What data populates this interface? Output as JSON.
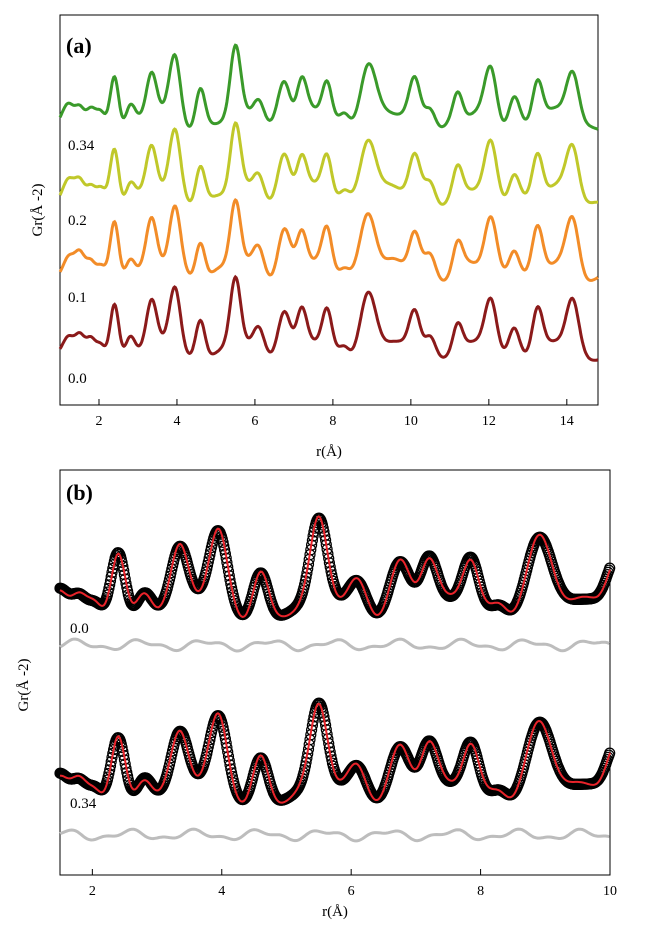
{
  "chart_data": [
    {
      "type": "line",
      "panel": "(a)",
      "xlabel": "r(Å)",
      "ylabel": "Gr(Å -2)",
      "xlim": [
        1,
        14.8
      ],
      "xticks": [
        2,
        4,
        6,
        8,
        10,
        12,
        14
      ],
      "yticks_shown": false,
      "series": [
        {
          "name": "0.0",
          "color": "#8b1a1a",
          "offset": 0
        },
        {
          "name": "0.1",
          "color": "#f28c28",
          "offset": 1
        },
        {
          "name": "0.2",
          "color": "#c0c82a",
          "offset": 2
        },
        {
          "name": "0.34",
          "color": "#3a9a2a",
          "offset": 3
        }
      ]
    },
    {
      "type": "scatter",
      "panel": "(b)",
      "xlabel": "r(Å)",
      "ylabel": "Gr(Å -2)",
      "xlim": [
        1.5,
        10
      ],
      "xticks": [
        2,
        4,
        6,
        8,
        10
      ],
      "yticks_shown": false,
      "series": [
        {
          "name": "0.0",
          "data_color": "#000000",
          "fit_color": "#e8232a",
          "diff_color": "#bdbdbd"
        },
        {
          "name": "0.34",
          "data_color": "#000000",
          "fit_color": "#e8232a",
          "diff_color": "#bdbdbd"
        }
      ]
    }
  ]
}
